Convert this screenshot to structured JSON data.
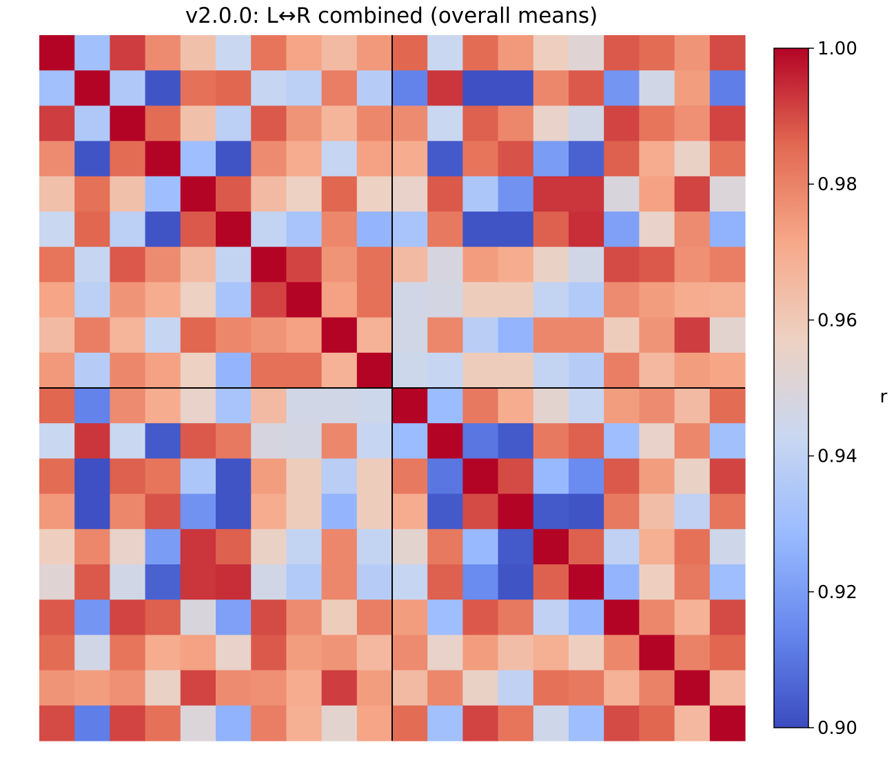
{
  "chart_data": {
    "type": "heatmap",
    "title": "v2.0.0: L↔R combined (overall means)",
    "colorbar": {
      "label": "r",
      "range": [
        0.9,
        1.0
      ],
      "ticks": [
        "0.90",
        "0.92",
        "0.94",
        "0.96",
        "0.98",
        "1.00"
      ],
      "colormap": "coolwarm",
      "stops": [
        "#3b4cc0",
        "#6788ee",
        "#9abbff",
        "#c9d7f0",
        "#edd1c2",
        "#f7a889",
        "#e26952",
        "#b40426"
      ]
    },
    "grid": false,
    "divider_after": 10,
    "matrix": [
      [
        1.0,
        0.931,
        0.992,
        0.978,
        0.963,
        0.943,
        0.983,
        0.972,
        0.965,
        0.975,
        0.986,
        0.943,
        0.985,
        0.975,
        0.958,
        0.952,
        0.988,
        0.985,
        0.976,
        0.99
      ],
      [
        0.931,
        1.0,
        0.935,
        0.902,
        0.984,
        0.986,
        0.942,
        0.939,
        0.981,
        0.937,
        0.913,
        0.993,
        0.901,
        0.901,
        0.979,
        0.988,
        0.918,
        0.946,
        0.974,
        0.912
      ],
      [
        0.992,
        0.935,
        1.0,
        0.985,
        0.963,
        0.939,
        0.988,
        0.976,
        0.967,
        0.979,
        0.978,
        0.943,
        0.987,
        0.979,
        0.955,
        0.946,
        0.991,
        0.983,
        0.977,
        0.991
      ],
      [
        0.978,
        0.902,
        0.985,
        1.0,
        0.93,
        0.902,
        0.978,
        0.97,
        0.942,
        0.973,
        0.97,
        0.903,
        0.983,
        0.989,
        0.92,
        0.905,
        0.987,
        0.97,
        0.956,
        0.984
      ],
      [
        0.963,
        0.984,
        0.963,
        0.93,
        1.0,
        0.988,
        0.965,
        0.957,
        0.986,
        0.957,
        0.955,
        0.988,
        0.934,
        0.917,
        0.993,
        0.993,
        0.949,
        0.973,
        0.991,
        0.95
      ],
      [
        0.943,
        0.986,
        0.939,
        0.902,
        0.988,
        1.0,
        0.941,
        0.933,
        0.979,
        0.927,
        0.933,
        0.982,
        0.902,
        0.902,
        0.987,
        0.994,
        0.921,
        0.955,
        0.978,
        0.926
      ],
      [
        0.983,
        0.942,
        0.988,
        0.978,
        0.965,
        0.941,
        1.0,
        0.991,
        0.976,
        0.984,
        0.965,
        0.948,
        0.974,
        0.97,
        0.956,
        0.946,
        0.99,
        0.988,
        0.977,
        0.981
      ],
      [
        0.972,
        0.939,
        0.976,
        0.97,
        0.957,
        0.933,
        0.991,
        1.0,
        0.973,
        0.984,
        0.946,
        0.947,
        0.959,
        0.959,
        0.941,
        0.936,
        0.978,
        0.974,
        0.97,
        0.969
      ],
      [
        0.965,
        0.981,
        0.967,
        0.942,
        0.986,
        0.979,
        0.976,
        0.973,
        1.0,
        0.968,
        0.946,
        0.979,
        0.938,
        0.927,
        0.979,
        0.979,
        0.959,
        0.976,
        0.992,
        0.953
      ],
      [
        0.975,
        0.937,
        0.979,
        0.973,
        0.957,
        0.927,
        0.984,
        0.984,
        0.968,
        1.0,
        0.944,
        0.942,
        0.959,
        0.959,
        0.941,
        0.937,
        0.981,
        0.966,
        0.974,
        0.972
      ],
      [
        0.986,
        0.913,
        0.978,
        0.97,
        0.955,
        0.933,
        0.965,
        0.946,
        0.946,
        0.944,
        1.0,
        0.929,
        0.982,
        0.97,
        0.953,
        0.942,
        0.974,
        0.978,
        0.965,
        0.985
      ],
      [
        0.943,
        0.993,
        0.943,
        0.903,
        0.988,
        0.982,
        0.948,
        0.947,
        0.979,
        0.942,
        0.929,
        1.0,
        0.91,
        0.903,
        0.982,
        0.987,
        0.93,
        0.955,
        0.979,
        0.931
      ],
      [
        0.985,
        0.901,
        0.987,
        0.983,
        0.934,
        0.902,
        0.974,
        0.959,
        0.938,
        0.959,
        0.982,
        0.91,
        1.0,
        0.99,
        0.928,
        0.915,
        0.988,
        0.974,
        0.956,
        0.991
      ],
      [
        0.975,
        0.901,
        0.979,
        0.989,
        0.917,
        0.902,
        0.97,
        0.959,
        0.927,
        0.959,
        0.97,
        0.903,
        0.99,
        1.0,
        0.903,
        0.902,
        0.982,
        0.964,
        0.94,
        0.983
      ],
      [
        0.958,
        0.979,
        0.955,
        0.92,
        0.993,
        0.987,
        0.956,
        0.941,
        0.979,
        0.941,
        0.953,
        0.982,
        0.928,
        0.903,
        1.0,
        0.987,
        0.94,
        0.969,
        0.984,
        0.945
      ],
      [
        0.952,
        0.988,
        0.946,
        0.905,
        0.993,
        0.994,
        0.946,
        0.936,
        0.979,
        0.937,
        0.942,
        0.987,
        0.915,
        0.902,
        0.987,
        1.0,
        0.927,
        0.958,
        0.982,
        0.93
      ],
      [
        0.988,
        0.918,
        0.991,
        0.987,
        0.949,
        0.921,
        0.99,
        0.978,
        0.959,
        0.981,
        0.974,
        0.93,
        0.988,
        0.982,
        0.94,
        0.927,
        1.0,
        0.979,
        0.968,
        0.99
      ],
      [
        0.985,
        0.946,
        0.983,
        0.97,
        0.973,
        0.955,
        0.988,
        0.974,
        0.976,
        0.966,
        0.978,
        0.955,
        0.974,
        0.964,
        0.969,
        0.958,
        0.979,
        1.0,
        0.98,
        0.986
      ],
      [
        0.976,
        0.974,
        0.977,
        0.956,
        0.991,
        0.978,
        0.977,
        0.97,
        0.992,
        0.974,
        0.965,
        0.979,
        0.956,
        0.94,
        0.984,
        0.982,
        0.968,
        0.98,
        1.0,
        0.966
      ],
      [
        0.99,
        0.912,
        0.991,
        0.984,
        0.95,
        0.926,
        0.981,
        0.969,
        0.953,
        0.972,
        0.985,
        0.931,
        0.991,
        0.983,
        0.945,
        0.93,
        0.99,
        0.986,
        0.966,
        1.0
      ]
    ]
  }
}
